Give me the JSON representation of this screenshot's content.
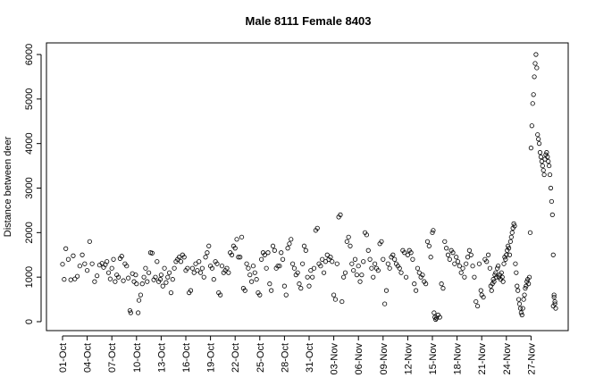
{
  "chart_data": {
    "type": "scatter",
    "title": "Male 8111 Female 8403",
    "xlabel": "",
    "ylabel": "Distance between deer",
    "xlim": [
      0,
      60
    ],
    "ylim": [
      0,
      6200
    ],
    "y_ticks": [
      0,
      1000,
      2000,
      3000,
      4000,
      5000,
      6000
    ],
    "x_ticks": [
      {
        "x": 0,
        "label": "01-Oct"
      },
      {
        "x": 3,
        "label": "04-Oct"
      },
      {
        "x": 6,
        "label": "07-Oct"
      },
      {
        "x": 9,
        "label": "10-Oct"
      },
      {
        "x": 12,
        "label": "13-Oct"
      },
      {
        "x": 15,
        "label": "16-Oct"
      },
      {
        "x": 18,
        "label": "19-Oct"
      },
      {
        "x": 21,
        "label": "22-Oct"
      },
      {
        "x": 24,
        "label": "25-Oct"
      },
      {
        "x": 27,
        "label": "28-Oct"
      },
      {
        "x": 30,
        "label": "31-Oct"
      },
      {
        "x": 33,
        "label": "03-Nov"
      },
      {
        "x": 36,
        "label": "06-Nov"
      },
      {
        "x": 39,
        "label": "09-Nov"
      },
      {
        "x": 42,
        "label": "12-Nov"
      },
      {
        "x": 45,
        "label": "15-Nov"
      },
      {
        "x": 48,
        "label": "18-Nov"
      },
      {
        "x": 51,
        "label": "21-Nov"
      },
      {
        "x": 54,
        "label": "24-Nov"
      },
      {
        "x": 57,
        "label": "27-Nov"
      }
    ],
    "points": [
      [
        0.0,
        1290
      ],
      [
        0.2,
        950
      ],
      [
        0.4,
        1640
      ],
      [
        0.7,
        1400
      ],
      [
        1.0,
        940
      ],
      [
        1.3,
        1480
      ],
      [
        1.5,
        960
      ],
      [
        1.8,
        1020
      ],
      [
        2.1,
        1250
      ],
      [
        2.4,
        1500
      ],
      [
        2.7,
        1300
      ],
      [
        3.0,
        1150
      ],
      [
        3.3,
        1800
      ],
      [
        3.6,
        1300
      ],
      [
        3.9,
        900
      ],
      [
        4.2,
        1030
      ],
      [
        4.5,
        1270
      ],
      [
        4.8,
        1310
      ],
      [
        5.0,
        1220
      ],
      [
        5.2,
        1280
      ],
      [
        5.4,
        1350
      ],
      [
        5.6,
        1100
      ],
      [
        5.8,
        960
      ],
      [
        6.0,
        1200
      ],
      [
        6.2,
        1400
      ],
      [
        6.4,
        900
      ],
      [
        6.6,
        1050
      ],
      [
        6.8,
        1000
      ],
      [
        7.0,
        1420
      ],
      [
        7.2,
        1470
      ],
      [
        7.4,
        920
      ],
      [
        7.6,
        1300
      ],
      [
        7.8,
        1250
      ],
      [
        8.0,
        980
      ],
      [
        8.2,
        250
      ],
      [
        8.3,
        200
      ],
      [
        8.5,
        1080
      ],
      [
        8.7,
        900
      ],
      [
        8.9,
        1050
      ],
      [
        9.0,
        850
      ],
      [
        9.2,
        200
      ],
      [
        9.3,
        480
      ],
      [
        9.5,
        600
      ],
      [
        9.7,
        850
      ],
      [
        9.9,
        1000
      ],
      [
        10.1,
        1200
      ],
      [
        10.3,
        900
      ],
      [
        10.5,
        1100
      ],
      [
        10.7,
        1550
      ],
      [
        10.9,
        1540
      ],
      [
        11.1,
        940
      ],
      [
        11.3,
        1000
      ],
      [
        11.5,
        1350
      ],
      [
        11.7,
        900
      ],
      [
        11.9,
        950
      ],
      [
        12.0,
        1050
      ],
      [
        12.2,
        800
      ],
      [
        12.4,
        1200
      ],
      [
        12.6,
        880
      ],
      [
        12.8,
        1000
      ],
      [
        13.0,
        1100
      ],
      [
        13.2,
        650
      ],
      [
        13.4,
        950
      ],
      [
        13.6,
        1200
      ],
      [
        13.8,
        1350
      ],
      [
        14.0,
        1400
      ],
      [
        14.2,
        1450
      ],
      [
        14.4,
        1350
      ],
      [
        14.6,
        1500
      ],
      [
        14.8,
        1450
      ],
      [
        15.0,
        1150
      ],
      [
        15.2,
        1200
      ],
      [
        15.4,
        650
      ],
      [
        15.6,
        700
      ],
      [
        15.8,
        1200
      ],
      [
        16.0,
        1100
      ],
      [
        16.2,
        1300
      ],
      [
        16.4,
        1150
      ],
      [
        16.6,
        1350
      ],
      [
        16.8,
        1100
      ],
      [
        17.0,
        1200
      ],
      [
        17.2,
        1000
      ],
      [
        17.4,
        1450
      ],
      [
        17.6,
        1550
      ],
      [
        17.8,
        1700
      ],
      [
        18.0,
        1250
      ],
      [
        18.2,
        1200
      ],
      [
        18.4,
        950
      ],
      [
        18.6,
        1350
      ],
      [
        18.8,
        1300
      ],
      [
        19.0,
        650
      ],
      [
        19.2,
        600
      ],
      [
        19.4,
        1250
      ],
      [
        19.6,
        1100
      ],
      [
        19.8,
        1150
      ],
      [
        20.0,
        1200
      ],
      [
        20.2,
        1100
      ],
      [
        20.4,
        1550
      ],
      [
        20.6,
        1500
      ],
      [
        20.8,
        1700
      ],
      [
        21.0,
        1650
      ],
      [
        21.2,
        1850
      ],
      [
        21.4,
        1450
      ],
      [
        21.6,
        1450
      ],
      [
        21.8,
        1900
      ],
      [
        22.0,
        750
      ],
      [
        22.2,
        700
      ],
      [
        22.4,
        1300
      ],
      [
        22.6,
        1200
      ],
      [
        22.8,
        1050
      ],
      [
        23.0,
        900
      ],
      [
        23.2,
        1250
      ],
      [
        23.4,
        1100
      ],
      [
        23.6,
        950
      ],
      [
        23.8,
        650
      ],
      [
        24.0,
        600
      ],
      [
        24.2,
        1400
      ],
      [
        24.4,
        1550
      ],
      [
        24.6,
        1500
      ],
      [
        24.8,
        1200
      ],
      [
        25.0,
        1550
      ],
      [
        25.2,
        850
      ],
      [
        25.4,
        700
      ],
      [
        25.6,
        1700
      ],
      [
        25.8,
        1600
      ],
      [
        26.0,
        1200
      ],
      [
        26.2,
        1250
      ],
      [
        26.4,
        1250
      ],
      [
        26.6,
        1550
      ],
      [
        26.8,
        1400
      ],
      [
        27.0,
        800
      ],
      [
        27.2,
        600
      ],
      [
        27.4,
        1650
      ],
      [
        27.6,
        1750
      ],
      [
        27.8,
        1850
      ],
      [
        28.0,
        1300
      ],
      [
        28.2,
        1200
      ],
      [
        28.4,
        1050
      ],
      [
        28.6,
        1100
      ],
      [
        28.8,
        850
      ],
      [
        29.0,
        750
      ],
      [
        29.2,
        1300
      ],
      [
        29.4,
        1700
      ],
      [
        29.6,
        1600
      ],
      [
        29.8,
        1000
      ],
      [
        30.0,
        800
      ],
      [
        30.2,
        1150
      ],
      [
        30.4,
        1000
      ],
      [
        30.6,
        1200
      ],
      [
        30.8,
        2050
      ],
      [
        31.0,
        2100
      ],
      [
        31.2,
        1300
      ],
      [
        31.4,
        1250
      ],
      [
        31.6,
        1400
      ],
      [
        31.8,
        1100
      ],
      [
        32.0,
        1350
      ],
      [
        32.2,
        1500
      ],
      [
        32.4,
        1400
      ],
      [
        32.6,
        1450
      ],
      [
        32.8,
        1350
      ],
      [
        33.0,
        600
      ],
      [
        33.2,
        500
      ],
      [
        33.4,
        1300
      ],
      [
        33.6,
        2350
      ],
      [
        33.8,
        2400
      ],
      [
        34.0,
        450
      ],
      [
        34.2,
        1000
      ],
      [
        34.4,
        1100
      ],
      [
        34.6,
        1800
      ],
      [
        34.8,
        1900
      ],
      [
        35.0,
        1700
      ],
      [
        35.2,
        1300
      ],
      [
        35.4,
        1150
      ],
      [
        35.6,
        1400
      ],
      [
        35.8,
        1050
      ],
      [
        36.0,
        1250
      ],
      [
        36.2,
        900
      ],
      [
        36.4,
        1050
      ],
      [
        36.6,
        1350
      ],
      [
        36.8,
        2000
      ],
      [
        37.0,
        1950
      ],
      [
        37.2,
        1600
      ],
      [
        37.4,
        1400
      ],
      [
        37.6,
        1200
      ],
      [
        37.8,
        1000
      ],
      [
        38.0,
        1300
      ],
      [
        38.2,
        1200
      ],
      [
        38.4,
        1150
      ],
      [
        38.6,
        1750
      ],
      [
        38.8,
        1800
      ],
      [
        39.0,
        1400
      ],
      [
        39.2,
        400
      ],
      [
        39.4,
        700
      ],
      [
        39.6,
        1300
      ],
      [
        39.8,
        1200
      ],
      [
        40.0,
        1450
      ],
      [
        40.2,
        1500
      ],
      [
        40.4,
        1400
      ],
      [
        40.6,
        1300
      ],
      [
        40.8,
        1250
      ],
      [
        41.0,
        1200
      ],
      [
        41.2,
        1100
      ],
      [
        41.4,
        1600
      ],
      [
        41.6,
        1550
      ],
      [
        41.8,
        1000
      ],
      [
        42.0,
        1500
      ],
      [
        42.2,
        1600
      ],
      [
        42.4,
        1550
      ],
      [
        42.6,
        1400
      ],
      [
        42.8,
        850
      ],
      [
        43.0,
        700
      ],
      [
        43.2,
        1200
      ],
      [
        43.4,
        1100
      ],
      [
        43.6,
        1000
      ],
      [
        43.8,
        1050
      ],
      [
        44.0,
        900
      ],
      [
        44.2,
        850
      ],
      [
        44.4,
        1800
      ],
      [
        44.6,
        1700
      ],
      [
        44.8,
        1450
      ],
      [
        45.0,
        2000
      ],
      [
        45.1,
        2050
      ],
      [
        45.2,
        200
      ],
      [
        45.3,
        100
      ],
      [
        45.4,
        50
      ],
      [
        45.5,
        80
      ],
      [
        45.7,
        150
      ],
      [
        45.9,
        100
      ],
      [
        46.1,
        850
      ],
      [
        46.3,
        750
      ],
      [
        46.5,
        1800
      ],
      [
        46.7,
        1650
      ],
      [
        46.9,
        1500
      ],
      [
        47.1,
        1400
      ],
      [
        47.3,
        1600
      ],
      [
        47.5,
        1550
      ],
      [
        47.7,
        1300
      ],
      [
        47.9,
        1450
      ],
      [
        48.1,
        1350
      ],
      [
        48.3,
        1250
      ],
      [
        48.5,
        1100
      ],
      [
        48.7,
        1200
      ],
      [
        48.9,
        1000
      ],
      [
        49.1,
        1300
      ],
      [
        49.3,
        1450
      ],
      [
        49.5,
        1600
      ],
      [
        49.7,
        1500
      ],
      [
        49.9,
        1250
      ],
      [
        50.1,
        1000
      ],
      [
        50.3,
        450
      ],
      [
        50.5,
        350
      ],
      [
        50.7,
        1300
      ],
      [
        50.9,
        700
      ],
      [
        51.0,
        600
      ],
      [
        51.2,
        550
      ],
      [
        51.4,
        1400
      ],
      [
        51.6,
        1350
      ],
      [
        51.8,
        1500
      ],
      [
        52.0,
        1200
      ],
      [
        52.1,
        800
      ],
      [
        52.2,
        700
      ],
      [
        52.3,
        850
      ],
      [
        52.4,
        950
      ],
      [
        52.5,
        900
      ],
      [
        52.6,
        1050
      ],
      [
        52.7,
        1100
      ],
      [
        52.8,
        1000
      ],
      [
        52.9,
        1200
      ],
      [
        53.0,
        1250
      ],
      [
        53.1,
        1000
      ],
      [
        53.2,
        1050
      ],
      [
        53.3,
        950
      ],
      [
        53.4,
        1100
      ],
      [
        53.5,
        1000
      ],
      [
        53.6,
        900
      ],
      [
        53.7,
        1300
      ],
      [
        53.8,
        1450
      ],
      [
        53.9,
        1400
      ],
      [
        54.0,
        1500
      ],
      [
        54.1,
        1600
      ],
      [
        54.2,
        1700
      ],
      [
        54.3,
        1650
      ],
      [
        54.4,
        1500
      ],
      [
        54.5,
        1800
      ],
      [
        54.6,
        1900
      ],
      [
        54.7,
        2000
      ],
      [
        54.8,
        2100
      ],
      [
        54.9,
        2200
      ],
      [
        55.0,
        2150
      ],
      [
        55.1,
        1300
      ],
      [
        55.2,
        1100
      ],
      [
        55.3,
        800
      ],
      [
        55.4,
        700
      ],
      [
        55.5,
        500
      ],
      [
        55.6,
        400
      ],
      [
        55.7,
        300
      ],
      [
        55.8,
        200
      ],
      [
        55.9,
        150
      ],
      [
        56.0,
        300
      ],
      [
        56.1,
        500
      ],
      [
        56.2,
        600
      ],
      [
        56.3,
        750
      ],
      [
        56.4,
        800
      ],
      [
        56.5,
        900
      ],
      [
        56.6,
        950
      ],
      [
        56.7,
        850
      ],
      [
        56.8,
        1000
      ],
      [
        56.9,
        2000
      ],
      [
        57.0,
        3900
      ],
      [
        57.1,
        4400
      ],
      [
        57.2,
        4900
      ],
      [
        57.3,
        5100
      ],
      [
        57.4,
        5500
      ],
      [
        57.5,
        5800
      ],
      [
        57.6,
        6000
      ],
      [
        57.7,
        5700
      ],
      [
        57.8,
        4200
      ],
      [
        57.9,
        4100
      ],
      [
        58.0,
        4000
      ],
      [
        58.1,
        3800
      ],
      [
        58.2,
        3700
      ],
      [
        58.3,
        3600
      ],
      [
        58.4,
        3500
      ],
      [
        58.5,
        3400
      ],
      [
        58.6,
        3300
      ],
      [
        58.7,
        3650
      ],
      [
        58.8,
        3750
      ],
      [
        58.9,
        3800
      ],
      [
        59.0,
        3700
      ],
      [
        59.1,
        3600
      ],
      [
        59.2,
        3500
      ],
      [
        59.3,
        3300
      ],
      [
        59.4,
        3000
      ],
      [
        59.5,
        2700
      ],
      [
        59.6,
        2400
      ],
      [
        59.7,
        1500
      ],
      [
        59.8,
        600
      ],
      [
        59.9,
        400
      ],
      [
        60.0,
        300
      ],
      [
        59.9,
        450
      ],
      [
        59.8,
        550
      ],
      [
        59.7,
        350
      ]
    ]
  }
}
